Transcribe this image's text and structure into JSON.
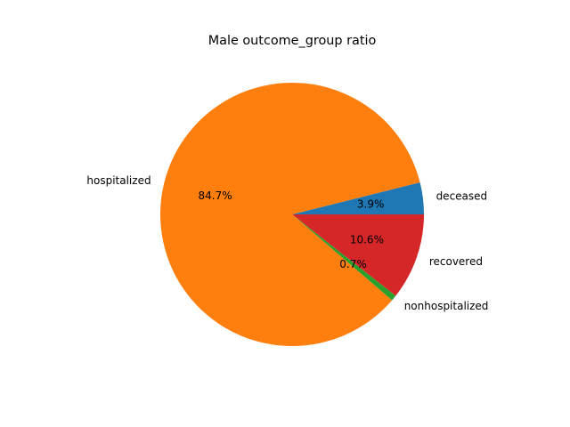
{
  "chart_data": {
    "type": "pie",
    "title": "Male outcome_group ratio",
    "start_angle_deg": 0,
    "direction": "counterclockwise",
    "slices": [
      {
        "label": "deceased",
        "value": 3.9,
        "pct_label": "3.9%",
        "color": "#1f77b4"
      },
      {
        "label": "hospitalized",
        "value": 84.7,
        "pct_label": "84.7%",
        "color": "#ff7f0e"
      },
      {
        "label": "nonhospitalized",
        "value": 0.7,
        "pct_label": "0.7%",
        "color": "#2ca02c"
      },
      {
        "label": "recovered",
        "value": 10.6,
        "pct_label": "10.6%",
        "color": "#d62728"
      }
    ]
  }
}
